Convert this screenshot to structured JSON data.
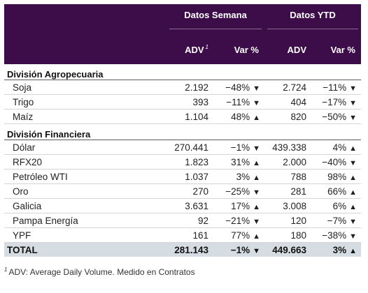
{
  "header": {
    "group1": "Datos Semana",
    "group2": "Datos YTD",
    "col_adv": "ADV",
    "col_adv_sup": "1",
    "col_var": "Var %",
    "col_adv2": "ADV",
    "col_var2": "Var %"
  },
  "colors": {
    "header_bg": "#3d0d4a",
    "negative": "#d1283b",
    "positive": "#1f9b38",
    "total_bg": "#d5dde3"
  },
  "sections": [
    {
      "title": "División Agropecuaria",
      "rows": [
        {
          "name": "Soja",
          "adv": "2.192",
          "var": "−48%",
          "dir": "down",
          "adv_ytd": "2.724",
          "var_ytd": "−11%",
          "dir_ytd": "down"
        },
        {
          "name": "Trigo",
          "adv": "393",
          "var": "−11%",
          "dir": "down",
          "adv_ytd": "404",
          "var_ytd": "−17%",
          "dir_ytd": "down"
        },
        {
          "name": "Maíz",
          "adv": "1.104",
          "var": "48%",
          "dir": "up",
          "adv_ytd": "820",
          "var_ytd": "−50%",
          "dir_ytd": "down"
        }
      ]
    },
    {
      "title": "División Financiera",
      "rows": [
        {
          "name": "Dólar",
          "adv": "270.441",
          "var": "−1%",
          "dir": "down",
          "adv_ytd": "439.338",
          "var_ytd": "4%",
          "dir_ytd": "up"
        },
        {
          "name": "RFX20",
          "adv": "1.823",
          "var": "31%",
          "dir": "up",
          "adv_ytd": "2.000",
          "var_ytd": "−40%",
          "dir_ytd": "down"
        },
        {
          "name": "Petróleo WTI",
          "adv": "1.037",
          "var": "3%",
          "dir": "up",
          "adv_ytd": "788",
          "var_ytd": "98%",
          "dir_ytd": "up"
        },
        {
          "name": "Oro",
          "adv": "270",
          "var": "−25%",
          "dir": "down",
          "adv_ytd": "281",
          "var_ytd": "66%",
          "dir_ytd": "up"
        },
        {
          "name": "Galicia",
          "adv": "3.631",
          "var": "17%",
          "dir": "up",
          "adv_ytd": "3.008",
          "var_ytd": "6%",
          "dir_ytd": "up"
        },
        {
          "name": "Pampa Energía",
          "adv": "92",
          "var": "−21%",
          "dir": "down",
          "adv_ytd": "120",
          "var_ytd": "−7%",
          "dir_ytd": "down"
        },
        {
          "name": "YPF",
          "adv": "161",
          "var": "77%",
          "dir": "up",
          "adv_ytd": "180",
          "var_ytd": "−38%",
          "dir_ytd": "down"
        }
      ]
    }
  ],
  "total": {
    "name": "TOTAL",
    "adv": "281.143",
    "var": "−1%",
    "dir": "down",
    "adv_ytd": "449.663",
    "var_ytd": "3%",
    "dir_ytd": "up"
  },
  "footnote": {
    "sup": "1",
    "text": "ADV: Average Daily Volume. Medido en Contratos"
  }
}
